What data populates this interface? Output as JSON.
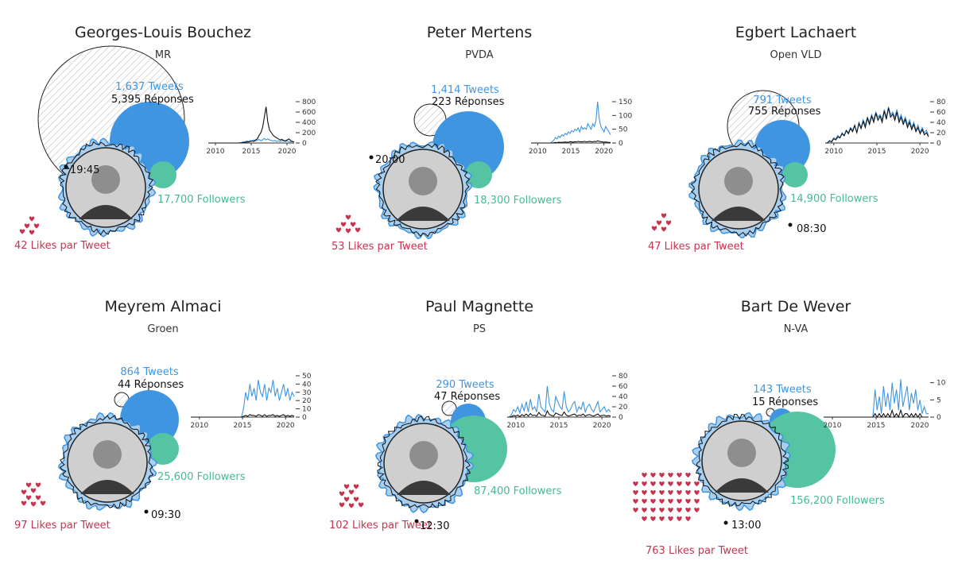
{
  "colors": {
    "tweets": "#3f95e0",
    "followers": "#55c4a3",
    "likes": "#c8344f",
    "tweets_line": "#3f95e0",
    "replies_line": "#111111",
    "aura": "#a9cff0"
  },
  "politicians": [
    {
      "name": "Georges-Louis Bouchez",
      "party": "MR",
      "tweets_label": "1,637 Tweets",
      "replies_label": "5,395 Réponses",
      "followers_label": "17,700 Followers",
      "likes_label": "42 Likes par Tweet",
      "time_label": "19:45"
    },
    {
      "name": "Peter Mertens",
      "party": "PVDA",
      "tweets_label": "1,414 Tweets",
      "replies_label": "223 Réponses",
      "followers_label": "18,300 Followers",
      "likes_label": "53 Likes par Tweet",
      "time_label": "20:00"
    },
    {
      "name": "Egbert Lachaert",
      "party": "Open VLD",
      "tweets_label": "791 Tweets",
      "replies_label": "755 Réponses",
      "followers_label": "14,900 Followers",
      "likes_label": "47 Likes par Tweet",
      "time_label": "08:30"
    },
    {
      "name": "Meyrem Almaci",
      "party": "Groen",
      "tweets_label": "864 Tweets",
      "replies_label": "44 Réponses",
      "followers_label": "25,600 Followers",
      "likes_label": "97 Likes par Tweet",
      "time_label": "09:30"
    },
    {
      "name": "Paul Magnette",
      "party": "PS",
      "tweets_label": "290 Tweets",
      "replies_label": "47 Réponses",
      "followers_label": "87,400 Followers",
      "likes_label": "102 Likes par Tweet",
      "time_label": "12:30"
    },
    {
      "name": "Bart De Wever",
      "party": "N-VA",
      "tweets_label": "143 Tweets",
      "replies_label": "15 Réponses",
      "followers_label": "156,200 Followers",
      "likes_label": "763 Likes par Tweet",
      "time_label": "13:00"
    }
  ],
  "chart_data": {
    "type": "bubble-multiples",
    "panels": [
      {
        "name": "Georges-Louis Bouchez",
        "party": "MR",
        "tweets": 1637,
        "replies": 5395,
        "followers": 17700,
        "likes_per_tweet": 42,
        "time": "19:45",
        "timeline": {
          "x_ticks": [
            "2010",
            "2015",
            "2020"
          ],
          "y_ticks": [
            0,
            200,
            400,
            600,
            800
          ],
          "y_max": 800,
          "x_range": [
            2009,
            2021
          ],
          "tweets": [
            0,
            0,
            0,
            0,
            0,
            0,
            0,
            0,
            0,
            0,
            0,
            0,
            0,
            0,
            0,
            0,
            0,
            0,
            5,
            10,
            20,
            30,
            40,
            30,
            50,
            40,
            60,
            40,
            50,
            70,
            40,
            60,
            90,
            60,
            80,
            60,
            50,
            40,
            50,
            30,
            40,
            30,
            50,
            40,
            30,
            40,
            30,
            20,
            30,
            20
          ],
          "replies": [
            0,
            0,
            0,
            0,
            0,
            0,
            0,
            0,
            0,
            0,
            0,
            0,
            0,
            0,
            0,
            0,
            0,
            0,
            0,
            5,
            10,
            10,
            20,
            20,
            30,
            40,
            30,
            60,
            80,
            150,
            200,
            300,
            500,
            700,
            400,
            250,
            200,
            150,
            120,
            100,
            80,
            60,
            70,
            50,
            40,
            60,
            80,
            50,
            30,
            20
          ]
        }
      },
      {
        "name": "Peter Mertens",
        "party": "PVDA",
        "tweets": 1414,
        "replies": 223,
        "followers": 18300,
        "likes_per_tweet": 53,
        "time": "20:00",
        "timeline": {
          "x_ticks": [
            "2010",
            "2015",
            "2020"
          ],
          "y_ticks": [
            0,
            50,
            100,
            150
          ],
          "y_max": 150,
          "x_range": [
            2009,
            2021
          ],
          "tweets": [
            0,
            0,
            0,
            0,
            0,
            0,
            0,
            0,
            0,
            0,
            0,
            0,
            0,
            5,
            10,
            20,
            15,
            25,
            20,
            30,
            25,
            35,
            30,
            40,
            35,
            45,
            40,
            50,
            45,
            55,
            40,
            60,
            50,
            55,
            50,
            70,
            60,
            50,
            70,
            60,
            80,
            150,
            90,
            60,
            50,
            40,
            60,
            50,
            40,
            30
          ],
          "replies": [
            0,
            0,
            0,
            0,
            0,
            0,
            0,
            0,
            0,
            0,
            0,
            0,
            0,
            0,
            1,
            2,
            1,
            3,
            2,
            3,
            2,
            4,
            3,
            3,
            5,
            4,
            3,
            5,
            4,
            6,
            5,
            4,
            5,
            6,
            4,
            5,
            6,
            5,
            4,
            6,
            5,
            8,
            6,
            5,
            4,
            3,
            4,
            3,
            2,
            2
          ]
        }
      },
      {
        "name": "Egbert Lachaert",
        "party": "Open VLD",
        "tweets": 791,
        "replies": 755,
        "followers": 14900,
        "likes_per_tweet": 47,
        "time": "08:30",
        "timeline": {
          "x_ticks": [
            "2010",
            "2015",
            "2020"
          ],
          "y_ticks": [
            0,
            20,
            40,
            60,
            80
          ],
          "y_max": 80,
          "x_range": [
            2009,
            2021
          ],
          "tweets": [
            0,
            0,
            5,
            3,
            10,
            8,
            15,
            10,
            20,
            15,
            25,
            20,
            30,
            25,
            35,
            20,
            40,
            30,
            45,
            35,
            50,
            40,
            55,
            45,
            60,
            50,
            55,
            45,
            65,
            50,
            70,
            55,
            60,
            50,
            65,
            45,
            55,
            40,
            50,
            35,
            45,
            30,
            40,
            25,
            35,
            20,
            30,
            20,
            25,
            15
          ],
          "replies": [
            0,
            0,
            4,
            2,
            8,
            6,
            12,
            10,
            18,
            14,
            24,
            18,
            28,
            22,
            34,
            20,
            38,
            28,
            42,
            30,
            48,
            36,
            52,
            40,
            58,
            44,
            52,
            40,
            62,
            46,
            68,
            50,
            56,
            44,
            60,
            40,
            50,
            36,
            46,
            30,
            40,
            26,
            36,
            22,
            30,
            18,
            26,
            16,
            20,
            12
          ]
        }
      },
      {
        "name": "Meyrem Almaci",
        "party": "Groen",
        "tweets": 864,
        "replies": 44,
        "followers": 25600,
        "likes_per_tweet": 97,
        "time": "09:30",
        "timeline": {
          "x_ticks": [
            "2010",
            "2015",
            "2020"
          ],
          "y_ticks": [
            0,
            10,
            20,
            30,
            40,
            50
          ],
          "y_max": 50,
          "x_range": [
            2009,
            2021
          ],
          "tweets": [
            0,
            0,
            0,
            0,
            0,
            0,
            0,
            0,
            0,
            0,
            0,
            0,
            0,
            0,
            0,
            0,
            0,
            0,
            0,
            0,
            0,
            0,
            0,
            0,
            0,
            10,
            30,
            20,
            40,
            25,
            35,
            20,
            45,
            30,
            25,
            40,
            20,
            35,
            30,
            45,
            25,
            35,
            20,
            30,
            40,
            25,
            35,
            20,
            30,
            25
          ],
          "replies": [
            0,
            0,
            0,
            0,
            0,
            0,
            0,
            0,
            0,
            0,
            0,
            0,
            0,
            0,
            0,
            0,
            0,
            0,
            0,
            0,
            0,
            0,
            0,
            0,
            0,
            1,
            2,
            1,
            3,
            2,
            2,
            1,
            3,
            2,
            1,
            3,
            1,
            2,
            2,
            3,
            1,
            2,
            1,
            2,
            3,
            1,
            2,
            1,
            2,
            1
          ]
        }
      },
      {
        "name": "Paul Magnette",
        "party": "PS",
        "tweets": 290,
        "replies": 47,
        "followers": 87400,
        "likes_per_tweet": 102,
        "time": "12:30",
        "timeline": {
          "x_ticks": [
            "2010",
            "2015",
            "2020"
          ],
          "y_ticks": [
            0,
            20,
            40,
            60,
            80
          ],
          "y_max": 80,
          "x_range": [
            2009,
            2021
          ],
          "tweets": [
            0,
            0,
            5,
            15,
            10,
            20,
            8,
            25,
            12,
            30,
            10,
            35,
            15,
            20,
            10,
            45,
            20,
            15,
            10,
            60,
            25,
            15,
            10,
            40,
            30,
            20,
            15,
            50,
            20,
            10,
            15,
            25,
            30,
            10,
            20,
            15,
            30,
            10,
            20,
            25,
            15,
            10,
            20,
            30,
            10,
            15,
            20,
            10,
            15,
            10
          ],
          "replies": [
            0,
            0,
            1,
            3,
            2,
            4,
            1,
            5,
            2,
            6,
            2,
            7,
            3,
            4,
            2,
            9,
            4,
            3,
            2,
            12,
            5,
            3,
            2,
            8,
            6,
            4,
            3,
            10,
            4,
            2,
            3,
            5,
            6,
            2,
            4,
            3,
            6,
            2,
            4,
            5,
            3,
            2,
            4,
            6,
            2,
            3,
            4,
            2,
            3,
            2
          ]
        }
      },
      {
        "name": "Bart De Wever",
        "party": "N-VA",
        "tweets": 143,
        "replies": 15,
        "followers": 156200,
        "likes_per_tweet": 763,
        "time": "13:00",
        "timeline": {
          "x_ticks": [
            "2010",
            "2015",
            "2020"
          ],
          "y_ticks": [
            0,
            5,
            10
          ],
          "y_max": 12,
          "x_range": [
            2009,
            2021
          ],
          "tweets": [
            0,
            0,
            0,
            0,
            0,
            0,
            0,
            0,
            0,
            0,
            0,
            0,
            0,
            0,
            0,
            0,
            0,
            0,
            0,
            0,
            0,
            0,
            0,
            0,
            8,
            2,
            6,
            1,
            9,
            3,
            7,
            2,
            10,
            4,
            8,
            2,
            11,
            3,
            6,
            9,
            2,
            7,
            4,
            8,
            2,
            5,
            1,
            3,
            1,
            1
          ],
          "replies": [
            0,
            0,
            0,
            0,
            0,
            0,
            0,
            0,
            0,
            0,
            0,
            0,
            0,
            0,
            0,
            0,
            0,
            0,
            0,
            0,
            0,
            0,
            0,
            0,
            1,
            0,
            1,
            0,
            1,
            0,
            1,
            0,
            2,
            0,
            1,
            0,
            2,
            0,
            1,
            1,
            0,
            1,
            0,
            1,
            0,
            1,
            0,
            0,
            0,
            0
          ]
        }
      }
    ]
  }
}
